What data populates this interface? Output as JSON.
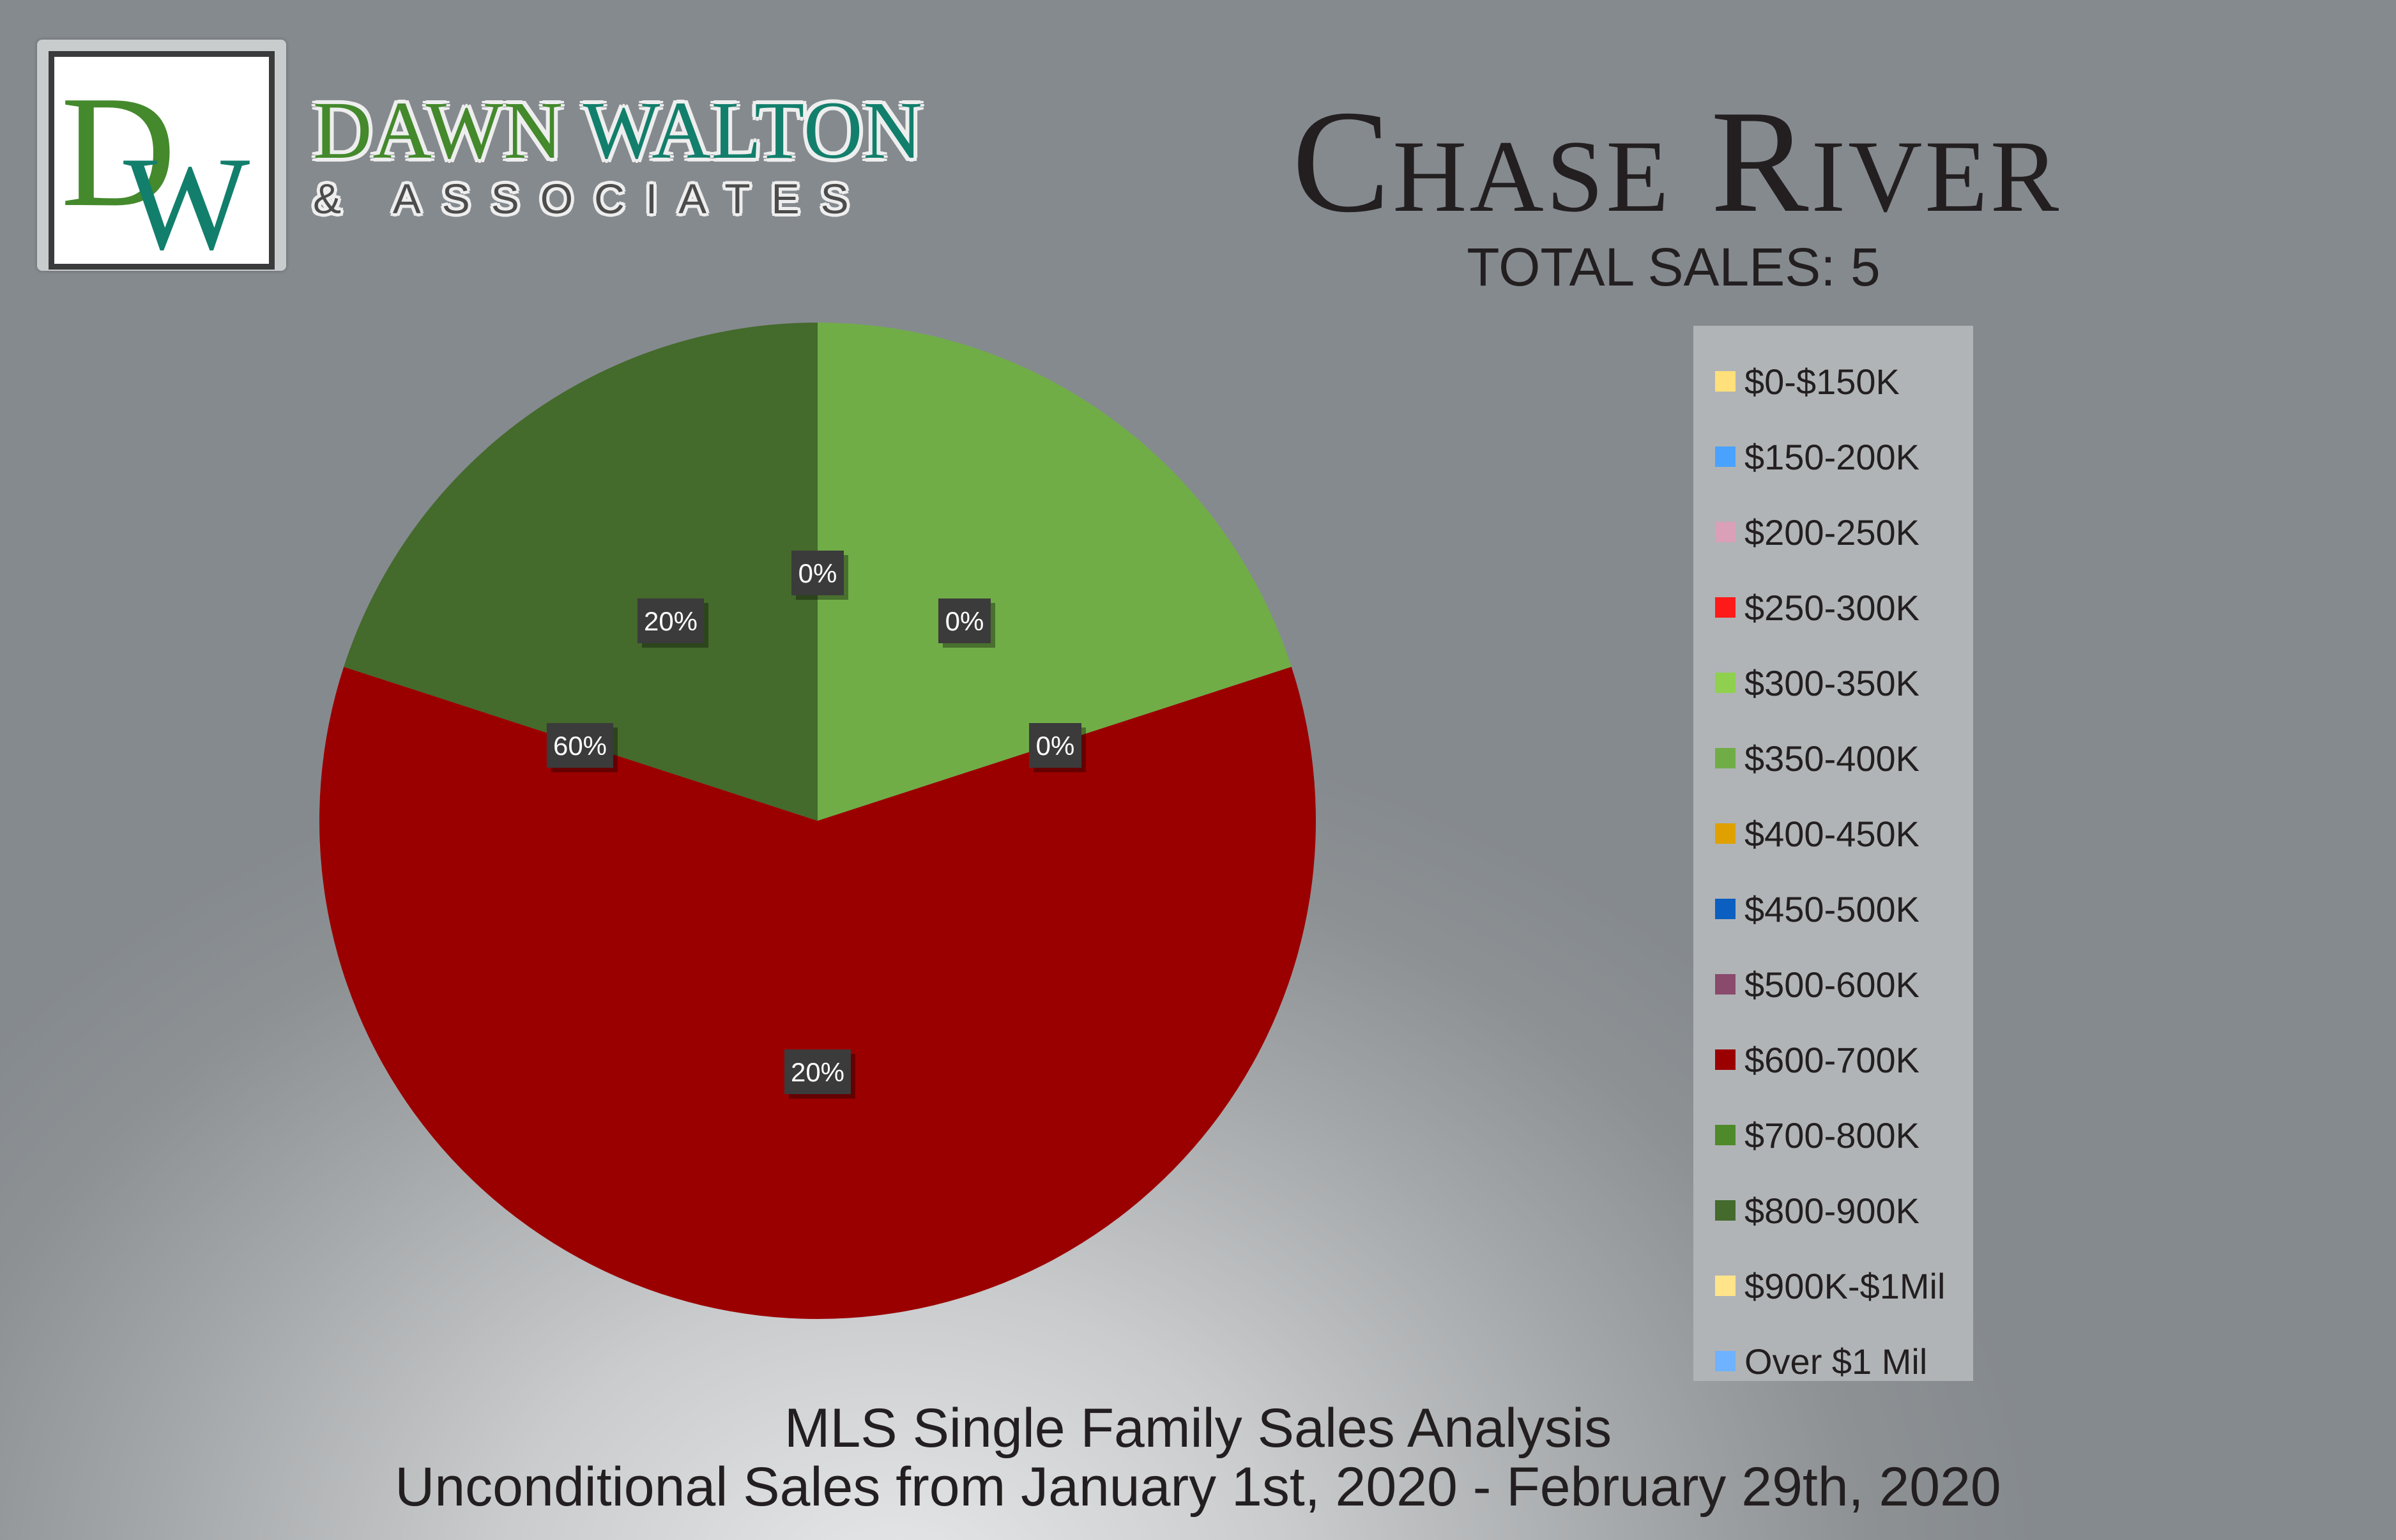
{
  "brand": {
    "monogram": "DW",
    "name_first": "DAWN",
    "name_last": "WALTON",
    "tagline": "& ASSOCIATES",
    "colors": {
      "green": "#44892c",
      "teal": "#127f6c"
    }
  },
  "header": {
    "title": "Chase River",
    "total_sales": "TOTAL SALES: 5"
  },
  "chart_data": {
    "type": "pie",
    "title": "Chase River",
    "subtitle": "TOTAL SALES: 5",
    "legend_position": "right",
    "slices": [
      {
        "label": "$0-$150K",
        "value": 0,
        "color": "#ffe07a"
      },
      {
        "label": "$150-200K",
        "value": 0,
        "color": "#4aa2ff"
      },
      {
        "label": "$200-250K",
        "value": 0,
        "color": "#d9a0b8"
      },
      {
        "label": "$250-300K",
        "value": 0,
        "color": "#ff1a1a"
      },
      {
        "label": "$300-350K",
        "value": 0,
        "color": "#8fd14f"
      },
      {
        "label": "$350-400K",
        "value": 20,
        "color": "#70ad47"
      },
      {
        "label": "$400-450K",
        "value": 0,
        "color": "#e0a000"
      },
      {
        "label": "$450-500K",
        "value": 0,
        "color": "#0a5fc0"
      },
      {
        "label": "$500-600K",
        "value": 0,
        "color": "#8a4a6c"
      },
      {
        "label": "$600-700K",
        "value": 60,
        "color": "#9b0000"
      },
      {
        "label": "$700-800K",
        "value": 0,
        "color": "#4e8a2a"
      },
      {
        "label": "$800-900K",
        "value": 20,
        "color": "#446a2c"
      },
      {
        "label": "$900K-$1Mil",
        "value": 0,
        "color": "#ffe48a"
      },
      {
        "label": "Over $1 Mil",
        "value": 0,
        "color": "#6fb2ff"
      }
    ],
    "data_labels": [
      "0%",
      "20%",
      "0%",
      "60%",
      "0%",
      "20%"
    ]
  },
  "footer": {
    "line1": "MLS Single Family Sales Analysis",
    "line2": "Unconditional Sales from January 1st, 2020 - February 29th, 2020"
  }
}
